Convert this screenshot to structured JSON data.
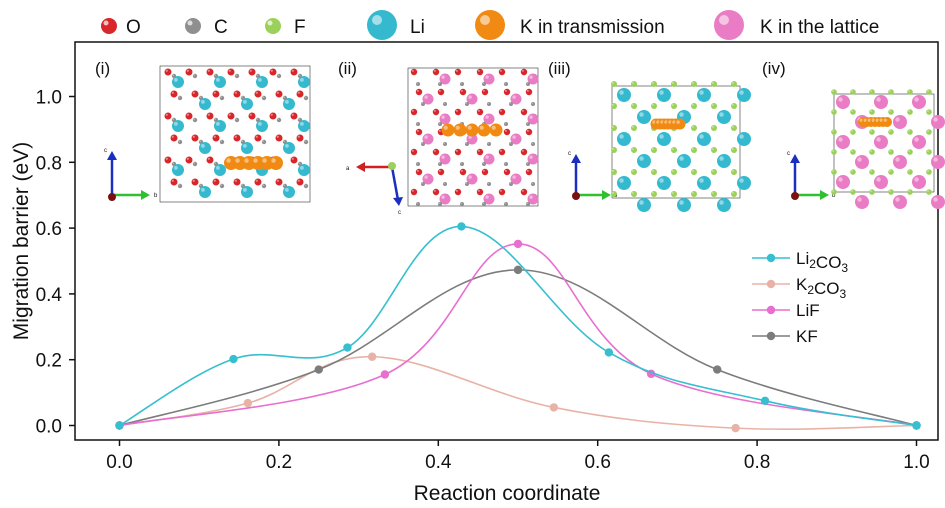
{
  "atom_legend": [
    {
      "symbol": "O",
      "label": "O",
      "color": "#d8262a"
    },
    {
      "symbol": "C",
      "label": "C",
      "color": "#8f8f8f"
    },
    {
      "symbol": "F",
      "label": "F",
      "color": "#9bd05a"
    },
    {
      "symbol": "Li",
      "label": "Li",
      "color": "#35b9cf"
    },
    {
      "symbol": "K-trans",
      "label": "K in transmission",
      "color": "#f08a12"
    },
    {
      "symbol": "K-latt",
      "label": "K in the lattice",
      "color": "#e97cc4"
    }
  ],
  "panels": [
    {
      "label": "(i)",
      "axes": [
        "c",
        "b"
      ]
    },
    {
      "label": "(ii)",
      "axes": [
        "c",
        "a"
      ]
    },
    {
      "label": "(iii)",
      "axes": [
        "c",
        "b"
      ]
    },
    {
      "label": "(iv)",
      "axes": [
        "c",
        "b"
      ]
    }
  ],
  "chart_data": {
    "type": "line",
    "xlabel": "Reaction coordinate",
    "ylabel": "Migration barrier (eV)",
    "xlim": [
      -0.05,
      1.03
    ],
    "ylim": [
      -0.03,
      1.12
    ],
    "x_ticks": [
      "0.0",
      "0.2",
      "0.4",
      "0.6",
      "0.8",
      "1.0"
    ],
    "y_ticks": [
      "0.0",
      "0.2",
      "0.4",
      "0.6",
      "0.8",
      "1.0"
    ],
    "grid": false,
    "legend_position": "right",
    "series": [
      {
        "name": "Li2CO3",
        "label_main": "Li",
        "label_sub1": "2",
        "label_mid": "CO",
        "label_sub2": "3",
        "color": "#35bfcf",
        "x": [
          0.0,
          0.143,
          0.286,
          0.429,
          0.614,
          0.81,
          1.0
        ],
        "y": [
          0.0,
          0.202,
          0.237,
          0.605,
          0.222,
          0.075,
          0.0
        ]
      },
      {
        "name": "K2CO3",
        "label_main": "K",
        "label_sub1": "2",
        "label_mid": "CO",
        "label_sub2": "3",
        "color": "#e8b3a6",
        "x": [
          0.0,
          0.161,
          0.317,
          0.545,
          0.773,
          1.0
        ],
        "y": [
          0.0,
          0.068,
          0.209,
          0.055,
          -0.008,
          0.0
        ]
      },
      {
        "name": "LiF",
        "label_main": "LiF",
        "label_sub1": "",
        "label_mid": "",
        "label_sub2": "",
        "color": "#e86fcf",
        "x": [
          0.0,
          0.333,
          0.5,
          0.667,
          1.0
        ],
        "y": [
          0.0,
          0.155,
          0.552,
          0.157,
          0.0
        ]
      },
      {
        "name": "KF",
        "label_main": "KF",
        "label_sub1": "",
        "label_mid": "",
        "label_sub2": "",
        "color": "#7c7c7c",
        "x": [
          0.0,
          0.25,
          0.5,
          0.75,
          1.0
        ],
        "y": [
          0.0,
          0.17,
          0.473,
          0.17,
          0.0
        ]
      }
    ]
  }
}
